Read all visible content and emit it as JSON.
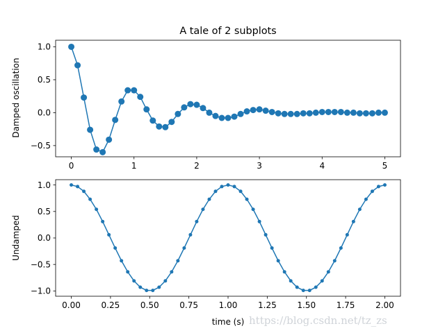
{
  "chart_data": [
    {
      "type": "line",
      "title": "A tale of 2 subplots",
      "xlabel": "",
      "ylabel": "Damped oscillation",
      "xlim": [
        -0.25,
        5.25
      ],
      "ylim": [
        -0.67,
        1.1
      ],
      "x_ticks": [
        "0",
        "1",
        "2",
        "3",
        "4",
        "5"
      ],
      "y_ticks": [
        "−0.5",
        "0.0",
        "0.5",
        "1.0"
      ],
      "grid": false,
      "marker": "large-circle",
      "color": "#1f77b4",
      "series": [
        {
          "x": [
            0.0,
            0.1,
            0.2,
            0.3,
            0.4,
            0.5,
            0.6,
            0.7,
            0.8,
            0.9,
            1.0,
            1.1,
            1.2,
            1.3,
            1.4,
            1.5,
            1.6,
            1.7,
            1.8,
            1.9,
            2.0,
            2.1,
            2.2,
            2.3,
            2.4,
            2.5,
            2.6,
            2.7,
            2.8,
            2.9,
            3.0,
            3.1,
            3.2,
            3.3,
            3.4,
            3.5,
            3.6,
            3.7,
            3.8,
            3.9,
            4.0,
            4.1,
            4.2,
            4.3,
            4.4,
            4.5,
            4.6,
            4.7,
            4.8,
            4.9,
            5.0
          ],
          "y": [
            1.0,
            0.72,
            0.23,
            -0.26,
            -0.56,
            -0.6,
            -0.41,
            -0.11,
            0.17,
            0.34,
            0.34,
            0.24,
            0.05,
            -0.12,
            -0.21,
            -0.22,
            -0.14,
            -0.02,
            0.08,
            0.13,
            0.12,
            0.07,
            0.0,
            -0.05,
            -0.08,
            -0.08,
            -0.06,
            -0.02,
            0.02,
            0.04,
            0.05,
            0.03,
            0.01,
            -0.01,
            -0.02,
            -0.02,
            -0.02,
            -0.01,
            -0.01,
            0.0,
            0.01,
            0.01,
            0.01,
            0.01,
            0.0,
            0.0,
            -0.01,
            -0.01,
            -0.01,
            0.0,
            0.0
          ]
        }
      ]
    },
    {
      "type": "line",
      "title": "",
      "xlabel": "time (s)",
      "ylabel": "Undamped",
      "xlim": [
        -0.1,
        2.1
      ],
      "ylim": [
        -1.1,
        1.1
      ],
      "x_ticks": [
        "0.00",
        "0.25",
        "0.50",
        "0.75",
        "1.00",
        "1.25",
        "1.50",
        "1.75",
        "2.00"
      ],
      "y_ticks": [
        "−1.0",
        "−0.5",
        "0.0",
        "0.5",
        "1.0"
      ],
      "grid": false,
      "marker": "small-dot",
      "color": "#1f77b4",
      "series": [
        {
          "x": [
            0.0,
            0.04,
            0.08,
            0.12,
            0.16,
            0.2,
            0.24,
            0.28,
            0.32,
            0.36,
            0.4,
            0.44,
            0.48,
            0.52,
            0.56,
            0.6,
            0.64,
            0.68,
            0.72,
            0.76,
            0.8,
            0.84,
            0.88,
            0.92,
            0.96,
            1.0,
            1.04,
            1.08,
            1.12,
            1.16,
            1.2,
            1.24,
            1.28,
            1.32,
            1.36,
            1.4,
            1.44,
            1.48,
            1.52,
            1.56,
            1.6,
            1.64,
            1.68,
            1.72,
            1.76,
            1.8,
            1.84,
            1.88,
            1.92,
            1.96,
            2.0
          ],
          "y": [
            1.0,
            0.97,
            0.88,
            0.73,
            0.54,
            0.31,
            0.06,
            -0.19,
            -0.43,
            -0.64,
            -0.81,
            -0.93,
            -0.99,
            -0.99,
            -0.93,
            -0.81,
            -0.64,
            -0.43,
            -0.19,
            0.06,
            0.31,
            0.54,
            0.73,
            0.88,
            0.97,
            1.0,
            0.97,
            0.88,
            0.73,
            0.54,
            0.31,
            0.06,
            -0.19,
            -0.43,
            -0.64,
            -0.81,
            -0.93,
            -0.99,
            -0.99,
            -0.93,
            -0.81,
            -0.64,
            -0.43,
            -0.19,
            0.06,
            0.31,
            0.54,
            0.73,
            0.88,
            0.97,
            1.0
          ]
        }
      ]
    }
  ],
  "watermark": "https://blog.csdn.net/tz_zs"
}
